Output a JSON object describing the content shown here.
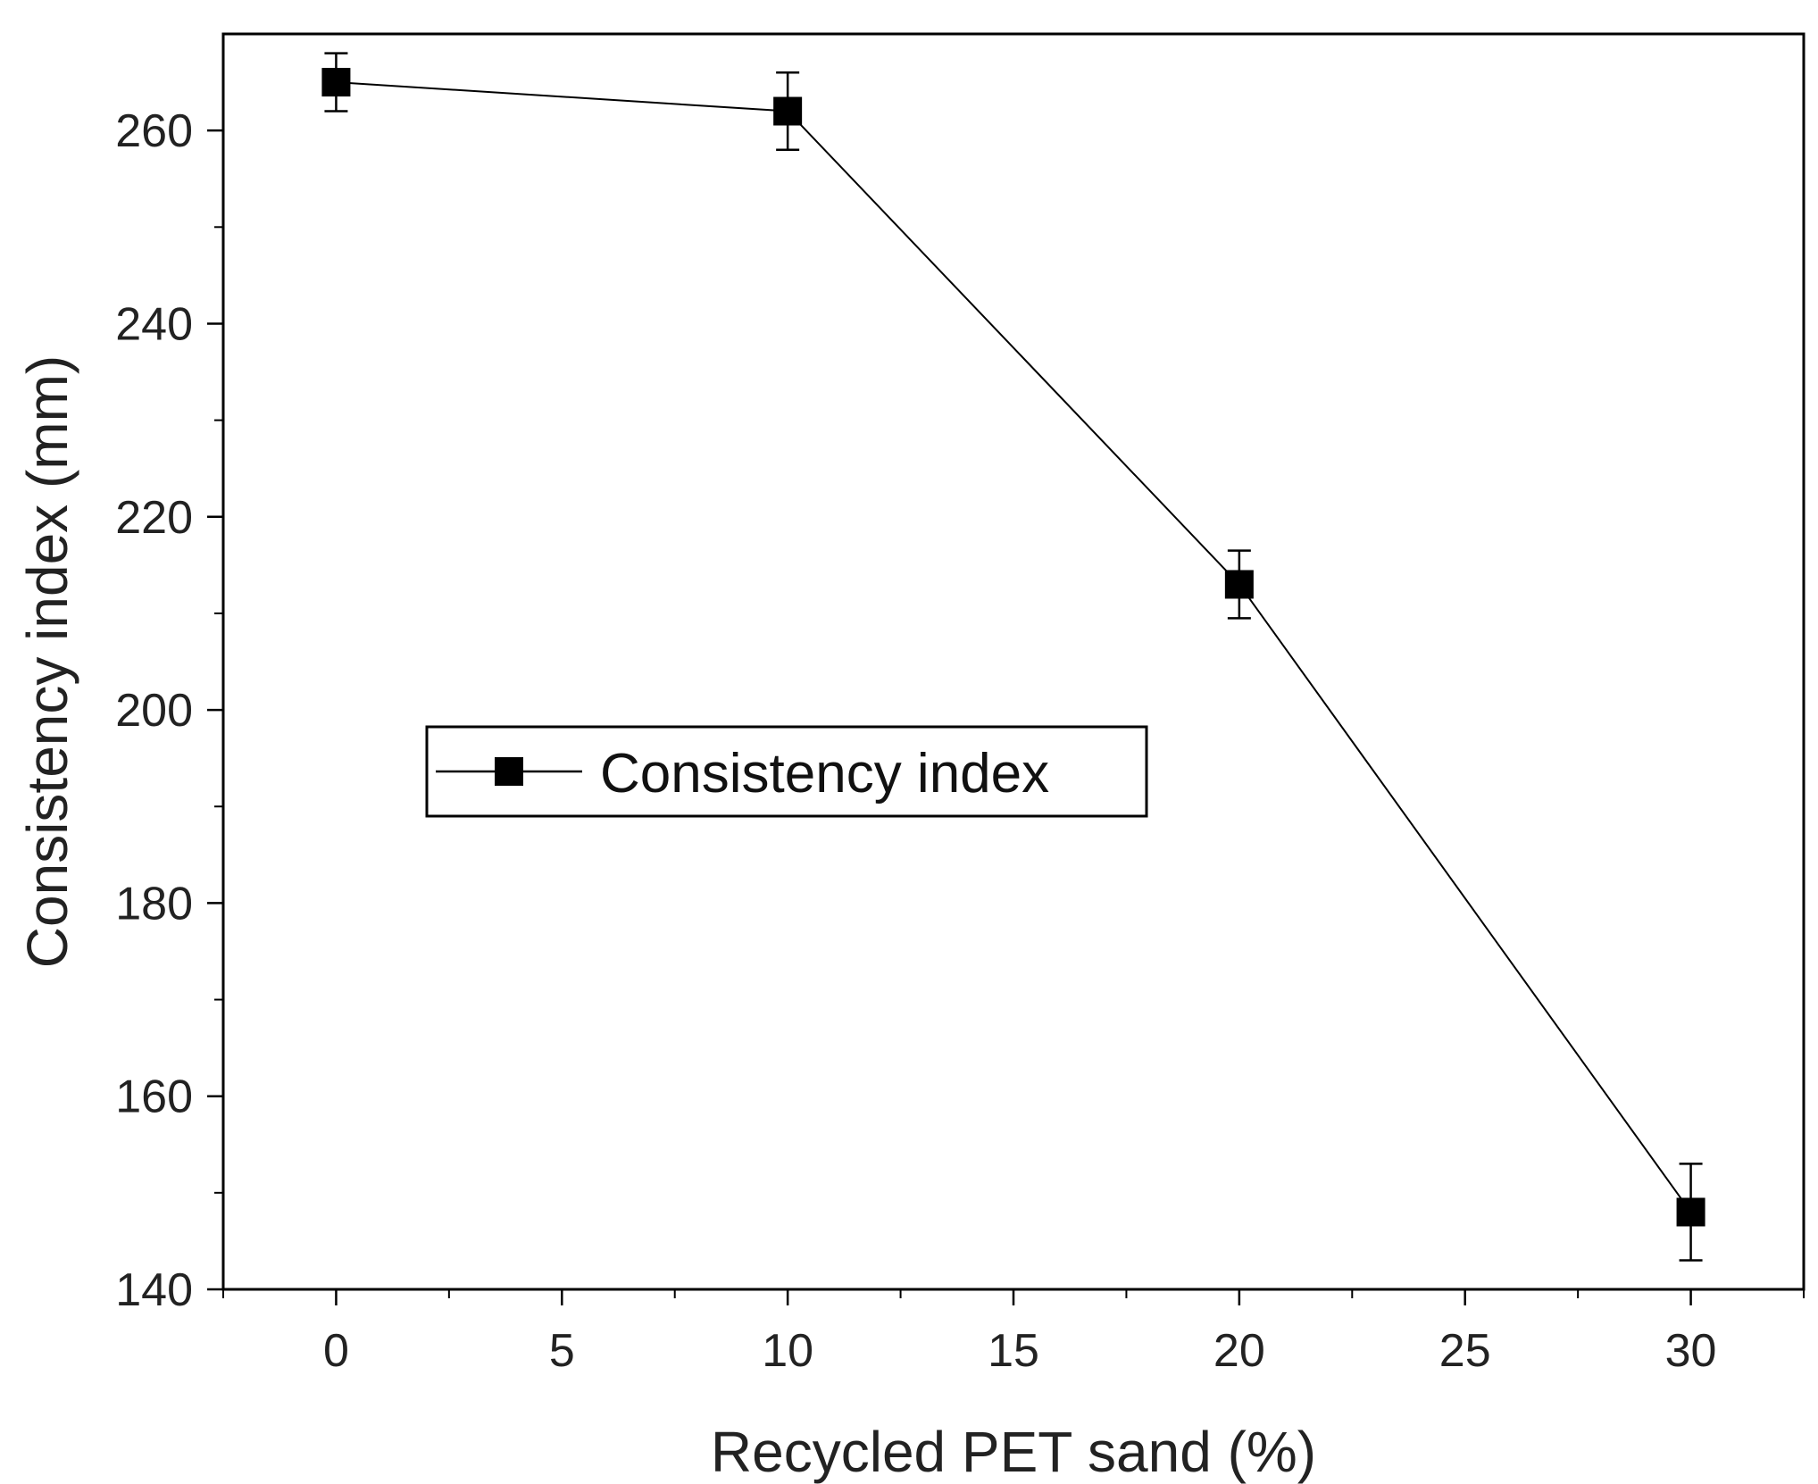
{
  "chart_data": {
    "type": "line",
    "title": "",
    "xlabel": "Recycled PET sand (%)",
    "ylabel": "Consistency index (mm)",
    "xlim": [
      -2.5,
      32.5
    ],
    "ylim": [
      140,
      270
    ],
    "xticks": [
      0,
      5,
      10,
      15,
      20,
      25,
      30
    ],
    "yticks": [
      140,
      160,
      180,
      200,
      220,
      240,
      260
    ],
    "grid": false,
    "legend_position": "center-left",
    "series": [
      {
        "name": "Consistency index",
        "marker": "square",
        "color": "#000000",
        "x": [
          0,
          10,
          20,
          30
        ],
        "values": [
          265,
          262,
          213,
          148
        ],
        "error_low": [
          262,
          258,
          209.5,
          143
        ],
        "error_high": [
          268,
          266,
          216.5,
          153
        ]
      }
    ]
  }
}
